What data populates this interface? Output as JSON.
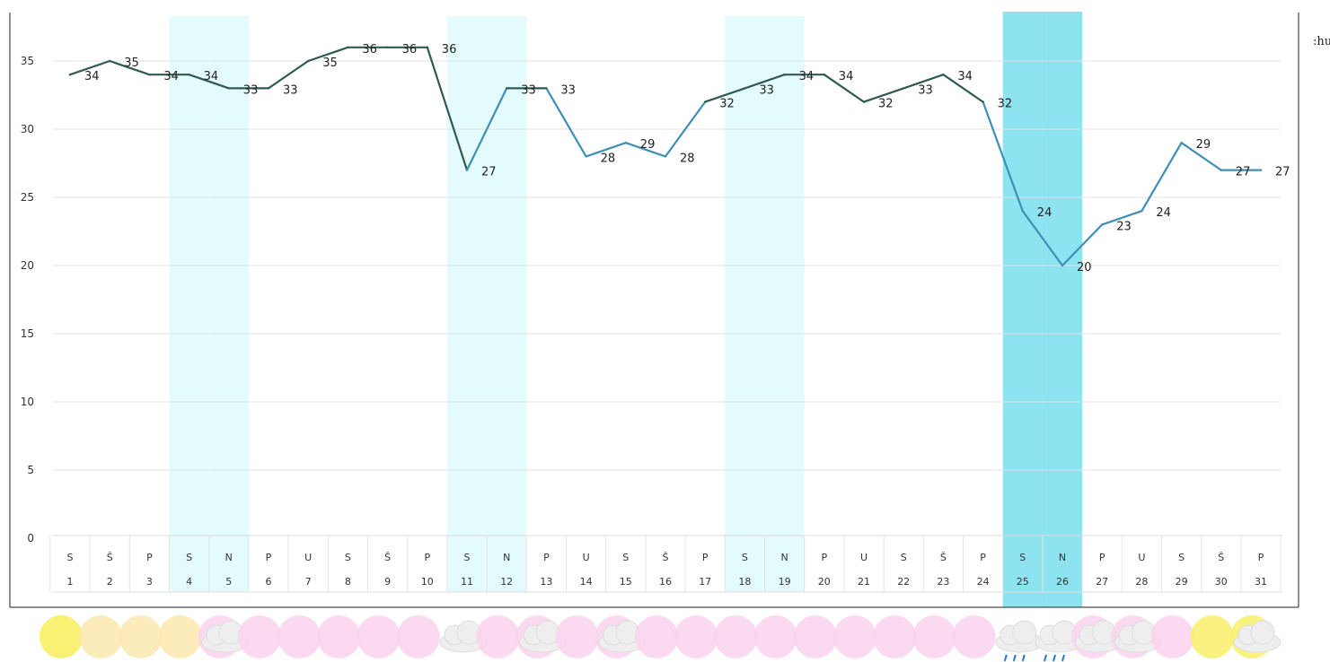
{
  "chart_data": {
    "type": "line",
    "title": "",
    "xlabel": "",
    "ylabel": "",
    "ylim": [
      0,
      37.5
    ],
    "yticks": [
      0,
      5,
      10,
      15,
      20,
      25,
      30,
      35
    ],
    "grid": true,
    "x": [
      1,
      2,
      3,
      4,
      5,
      6,
      7,
      8,
      9,
      10,
      11,
      12,
      13,
      14,
      15,
      16,
      17,
      18,
      19,
      20,
      21,
      22,
      23,
      24,
      25,
      26,
      27,
      28,
      29,
      30,
      31
    ],
    "days": [
      "S",
      "Š",
      "P",
      "S",
      "N",
      "P",
      "U",
      "S",
      "Š",
      "P",
      "S",
      "N",
      "P",
      "U",
      "S",
      "Š",
      "P",
      "S",
      "N",
      "P",
      "U",
      "S",
      "Š",
      "P",
      "S",
      "N",
      "P",
      "U",
      "S",
      "Š",
      "P"
    ],
    "series": [
      {
        "values": [
          34,
          35,
          34,
          34,
          33,
          33,
          35,
          36,
          36,
          36,
          27,
          33,
          33,
          28,
          29,
          28,
          32,
          33,
          34,
          34,
          32,
          33,
          34,
          32,
          24,
          20,
          23,
          24,
          29,
          27,
          27
        ]
      }
    ],
    "highlighted_days_light": [
      4,
      5,
      11,
      12,
      18,
      19
    ],
    "highlighted_days_strong": [
      25,
      26
    ],
    "weather_icons": [
      "sun",
      "sun",
      "sun",
      "sun",
      "sun-cloud",
      "sun",
      "sun",
      "sun",
      "sun",
      "sun",
      "cloud",
      "sun",
      "sun-cloud",
      "sun",
      "sun-cloud",
      "sun",
      "sun",
      "sun",
      "sun",
      "sun",
      "sun",
      "sun",
      "sun",
      "sun",
      "cloud-rain",
      "cloud-rain",
      "sun-cloud",
      "sun-cloud",
      "sun",
      "sun",
      "sun-cloud"
    ],
    "colors": {
      "line_hot": "#2e5a50",
      "line_cool": "#3f8fb4",
      "highlight_light": "#e4fbfd",
      "highlight_strong": "#8ee3f0",
      "grid": "#e2e2e2",
      "sun_yellow": "#f7ee5a",
      "sun_pink": "#f9d2ee",
      "rain": "#2277cc"
    }
  },
  "edge_text": ":hu"
}
